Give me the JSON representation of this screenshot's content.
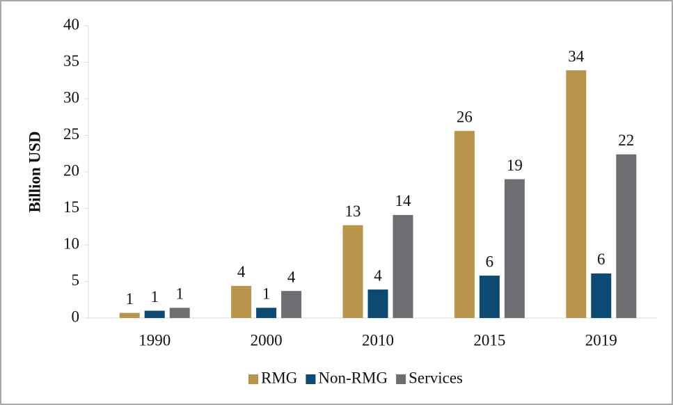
{
  "chart_data": {
    "type": "bar",
    "y_label": "Billion USD",
    "categories": [
      "1990",
      "2000",
      "2010",
      "2015",
      "2019"
    ],
    "series": [
      {
        "name": "RMG",
        "color": "#b8954a",
        "values": [
          0.7,
          4.4,
          12.7,
          25.6,
          33.9
        ],
        "value_labels": [
          "1",
          "4",
          "13",
          "26",
          "34"
        ]
      },
      {
        "name": "Non-RMG",
        "color": "#0d4a73",
        "values": [
          1.0,
          1.4,
          3.9,
          5.8,
          6.1
        ],
        "value_labels": [
          "1",
          "1",
          "4",
          "6",
          "6"
        ]
      },
      {
        "name": "Services",
        "color": "#6d6e71",
        "values": [
          1.4,
          3.7,
          14.1,
          19.0,
          22.4
        ],
        "value_labels": [
          "1",
          "4",
          "14",
          "19",
          "22"
        ]
      }
    ],
    "ylim": [
      0,
      40
    ],
    "yticks": [
      0,
      5,
      10,
      15,
      20,
      25,
      30,
      35,
      40
    ],
    "legend": "bottom"
  }
}
